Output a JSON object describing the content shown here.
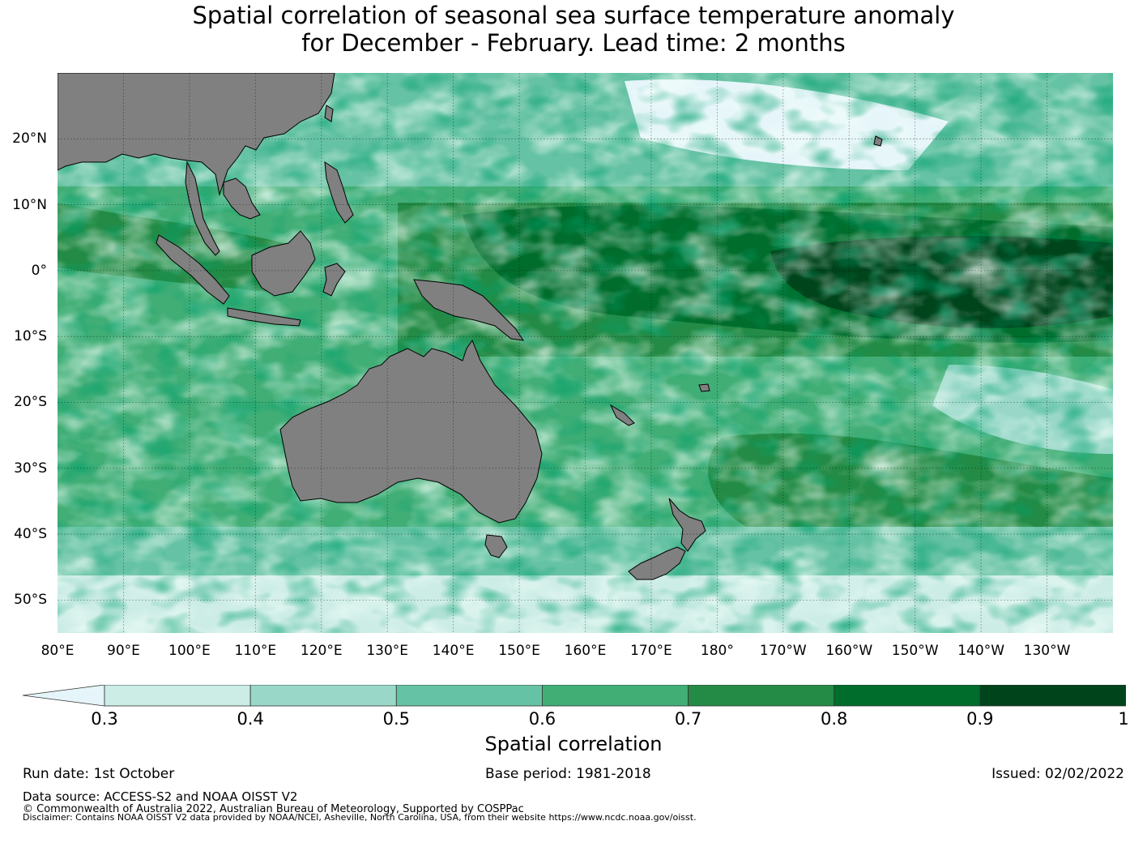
{
  "title": {
    "line1": "Spatial correlation of seasonal sea surface temperature anomaly",
    "line2": "for December - February. Lead time: 2 months"
  },
  "map": {
    "region": "Indo-Pacific",
    "land_color": "#808080",
    "lat_labels": [
      "20°N",
      "10°N",
      "0°",
      "10°S",
      "20°S",
      "30°S",
      "40°S",
      "50°S"
    ],
    "lon_labels": [
      "80°E",
      "90°E",
      "100°E",
      "110°E",
      "120°E",
      "130°E",
      "140°E",
      "150°E",
      "160°E",
      "170°E",
      "180°",
      "170°W",
      "160°W",
      "150°W",
      "140°W",
      "130°W"
    ],
    "lat_values": [
      20,
      10,
      0,
      -10,
      -20,
      -30,
      -40,
      -50
    ],
    "lon_values": [
      80,
      90,
      100,
      110,
      120,
      130,
      140,
      150,
      160,
      170,
      180,
      190,
      200,
      210,
      220,
      230
    ],
    "extent": {
      "lon_min": 80,
      "lon_max": 240,
      "lat_min": -55,
      "lat_max": 30
    }
  },
  "colorbar": {
    "label": "Spatial correlation",
    "ticks": [
      "0.3",
      "0.4",
      "0.5",
      "0.6",
      "0.7",
      "0.8",
      "0.9",
      "1"
    ],
    "under_color": "#e5f5f9",
    "colors": [
      "#ccece6",
      "#99d8c9",
      "#66c2a4",
      "#41ae76",
      "#238b45",
      "#006d2c",
      "#00441b"
    ]
  },
  "footer": {
    "run_date": "Run date: 1st October",
    "base_period": "Base period: 1981-2018",
    "issued": "Issued: 02/02/2022",
    "data_source": "Data source: ACCESS-S2 and NOAA OISST V2",
    "copyright": "© Commonwealth of Australia 2022, Australian Bureau of Meteorology, Supported by COSPPac",
    "disclaimer": "Disclaimer: Contains NOAA OISST V2 data provided by NOAA/NCEI, Asheville, North Carolina, USA, from their website https://www.ncdc.noaa.gov/oisst."
  }
}
